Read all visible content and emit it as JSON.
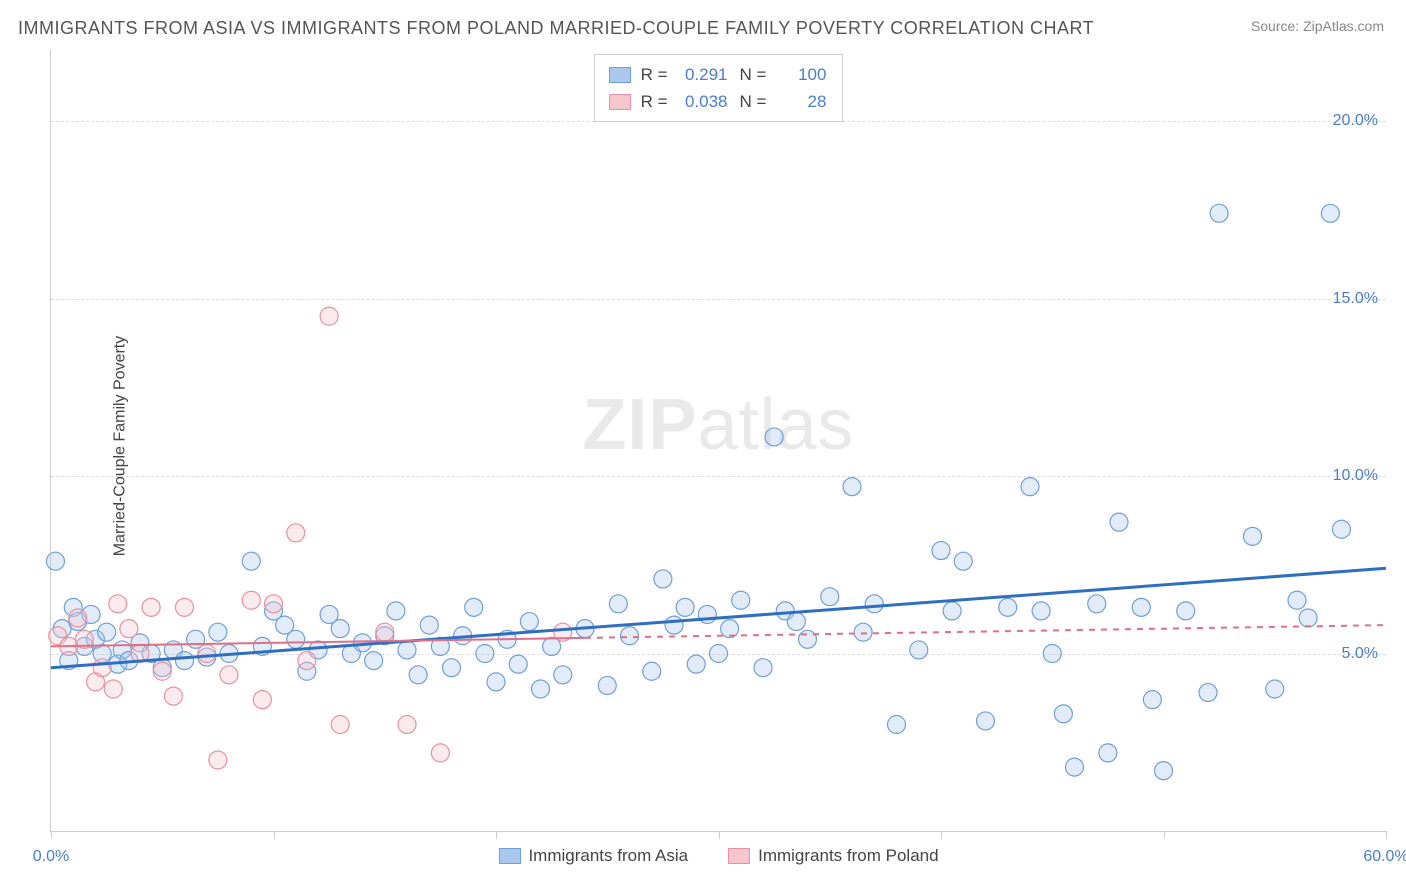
{
  "title": "IMMIGRANTS FROM ASIA VS IMMIGRANTS FROM POLAND MARRIED-COUPLE FAMILY POVERTY CORRELATION CHART",
  "source": "Source: ZipAtlas.com",
  "ylabel": "Married-Couple Family Poverty",
  "watermark_bold": "ZIP",
  "watermark_rest": "atlas",
  "chart": {
    "type": "scatter-with-regression",
    "background_color": "#ffffff",
    "grid_color": "#dddddd",
    "axis_color": "#cccccc",
    "text_color": "#555555",
    "tick_label_color": "#4a7ec9",
    "xlim": [
      0,
      60
    ],
    "ylim": [
      0,
      22
    ],
    "xtick_positions": [
      0,
      10,
      20,
      30,
      40,
      50,
      60
    ],
    "xtick_labels": {
      "0": "0.0%",
      "60": "60.0%"
    },
    "ytick_positions": [
      5,
      10,
      15,
      20
    ],
    "ytick_labels": [
      "5.0%",
      "10.0%",
      "15.0%",
      "20.0%"
    ],
    "marker_radius": 9,
    "marker_stroke_width": 1.2,
    "fill_opacity": 0.35,
    "series": [
      {
        "name": "Immigrants from Asia",
        "color_fill": "#a9c8ec",
        "color_stroke": "#6f9fd8",
        "trend_color": "#2e6fc0",
        "trend_width": 3,
        "trend_dash": "none",
        "R": "0.291",
        "N": "100",
        "trend": {
          "x1": 0,
          "y1": 4.6,
          "x2": 60,
          "y2": 7.4
        },
        "points": [
          [
            0.2,
            7.6
          ],
          [
            0.5,
            5.7
          ],
          [
            0.8,
            4.8
          ],
          [
            1.0,
            6.3
          ],
          [
            1.2,
            5.9
          ],
          [
            1.5,
            5.2
          ],
          [
            1.8,
            6.1
          ],
          [
            2.0,
            5.4
          ],
          [
            2.3,
            5.0
          ],
          [
            2.5,
            5.6
          ],
          [
            3.0,
            4.7
          ],
          [
            3.2,
            5.1
          ],
          [
            3.5,
            4.8
          ],
          [
            4.0,
            5.3
          ],
          [
            4.5,
            5.0
          ],
          [
            5.0,
            4.6
          ],
          [
            5.5,
            5.1
          ],
          [
            6.0,
            4.8
          ],
          [
            6.5,
            5.4
          ],
          [
            7.0,
            4.9
          ],
          [
            7.5,
            5.6
          ],
          [
            8.0,
            5.0
          ],
          [
            9.0,
            7.6
          ],
          [
            9.5,
            5.2
          ],
          [
            10.0,
            6.2
          ],
          [
            10.5,
            5.8
          ],
          [
            11.0,
            5.4
          ],
          [
            11.5,
            4.5
          ],
          [
            12.0,
            5.1
          ],
          [
            12.5,
            6.1
          ],
          [
            13.0,
            5.7
          ],
          [
            13.5,
            5.0
          ],
          [
            14.0,
            5.3
          ],
          [
            14.5,
            4.8
          ],
          [
            15.0,
            5.5
          ],
          [
            15.5,
            6.2
          ],
          [
            16.0,
            5.1
          ],
          [
            16.5,
            4.4
          ],
          [
            17.0,
            5.8
          ],
          [
            17.5,
            5.2
          ],
          [
            18.0,
            4.6
          ],
          [
            18.5,
            5.5
          ],
          [
            19.0,
            6.3
          ],
          [
            19.5,
            5.0
          ],
          [
            20.0,
            4.2
          ],
          [
            20.5,
            5.4
          ],
          [
            21.0,
            4.7
          ],
          [
            21.5,
            5.9
          ],
          [
            22.0,
            4.0
          ],
          [
            22.5,
            5.2
          ],
          [
            23.0,
            4.4
          ],
          [
            24.0,
            5.7
          ],
          [
            25.0,
            4.1
          ],
          [
            25.5,
            6.4
          ],
          [
            26.0,
            5.5
          ],
          [
            27.0,
            4.5
          ],
          [
            27.5,
            7.1
          ],
          [
            28.0,
            5.8
          ],
          [
            28.5,
            6.3
          ],
          [
            29.0,
            4.7
          ],
          [
            29.5,
            6.1
          ],
          [
            30.0,
            5.0
          ],
          [
            30.5,
            5.7
          ],
          [
            31.0,
            6.5
          ],
          [
            32.0,
            4.6
          ],
          [
            32.5,
            11.1
          ],
          [
            33.0,
            6.2
          ],
          [
            33.5,
            5.9
          ],
          [
            34.0,
            5.4
          ],
          [
            35.0,
            6.6
          ],
          [
            36.0,
            9.7
          ],
          [
            36.5,
            5.6
          ],
          [
            37.0,
            6.4
          ],
          [
            38.0,
            3.0
          ],
          [
            39.0,
            5.1
          ],
          [
            40.0,
            7.9
          ],
          [
            40.5,
            6.2
          ],
          [
            41.0,
            7.6
          ],
          [
            42.0,
            3.1
          ],
          [
            43.0,
            6.3
          ],
          [
            44.0,
            9.7
          ],
          [
            44.5,
            6.2
          ],
          [
            45.0,
            5.0
          ],
          [
            45.5,
            3.3
          ],
          [
            46.0,
            1.8
          ],
          [
            47.0,
            6.4
          ],
          [
            47.5,
            2.2
          ],
          [
            48.0,
            8.7
          ],
          [
            49.0,
            6.3
          ],
          [
            49.5,
            3.7
          ],
          [
            50.0,
            1.7
          ],
          [
            51.0,
            6.2
          ],
          [
            52.0,
            3.9
          ],
          [
            52.5,
            17.4
          ],
          [
            54.0,
            8.3
          ],
          [
            55.0,
            4.0
          ],
          [
            56.0,
            6.5
          ],
          [
            57.5,
            17.4
          ],
          [
            58.0,
            8.5
          ],
          [
            56.5,
            6.0
          ]
        ]
      },
      {
        "name": "Immigrants from Poland",
        "color_fill": "#f6c6cf",
        "color_stroke": "#e890a0",
        "trend_color": "#e06f87",
        "trend_width": 2,
        "trend_dash": "solid-then-dashed",
        "trend_dash_split_x": 24,
        "R": "0.038",
        "N": "28",
        "trend": {
          "x1": 0,
          "y1": 5.2,
          "x2": 60,
          "y2": 5.8
        },
        "points": [
          [
            0.3,
            5.5
          ],
          [
            0.8,
            5.2
          ],
          [
            1.2,
            6.0
          ],
          [
            1.5,
            5.4
          ],
          [
            2.0,
            4.2
          ],
          [
            2.3,
            4.6
          ],
          [
            2.8,
            4.0
          ],
          [
            3.0,
            6.4
          ],
          [
            3.5,
            5.7
          ],
          [
            4.0,
            5.0
          ],
          [
            4.5,
            6.3
          ],
          [
            5.0,
            4.5
          ],
          [
            5.5,
            3.8
          ],
          [
            6.0,
            6.3
          ],
          [
            7.0,
            5.0
          ],
          [
            7.5,
            2.0
          ],
          [
            8.0,
            4.4
          ],
          [
            9.0,
            6.5
          ],
          [
            9.5,
            3.7
          ],
          [
            10.0,
            6.4
          ],
          [
            11.0,
            8.4
          ],
          [
            11.5,
            4.8
          ],
          [
            12.5,
            14.5
          ],
          [
            13.0,
            3.0
          ],
          [
            15.0,
            5.6
          ],
          [
            16.0,
            3.0
          ],
          [
            17.5,
            2.2
          ],
          [
            23.0,
            5.6
          ]
        ]
      }
    ]
  },
  "legend_bottom": [
    {
      "label": "Immigrants from Asia",
      "fill": "#a9c8ec",
      "stroke": "#6f9fd8"
    },
    {
      "label": "Immigrants from Poland",
      "fill": "#f6c6cf",
      "stroke": "#e890a0"
    }
  ]
}
